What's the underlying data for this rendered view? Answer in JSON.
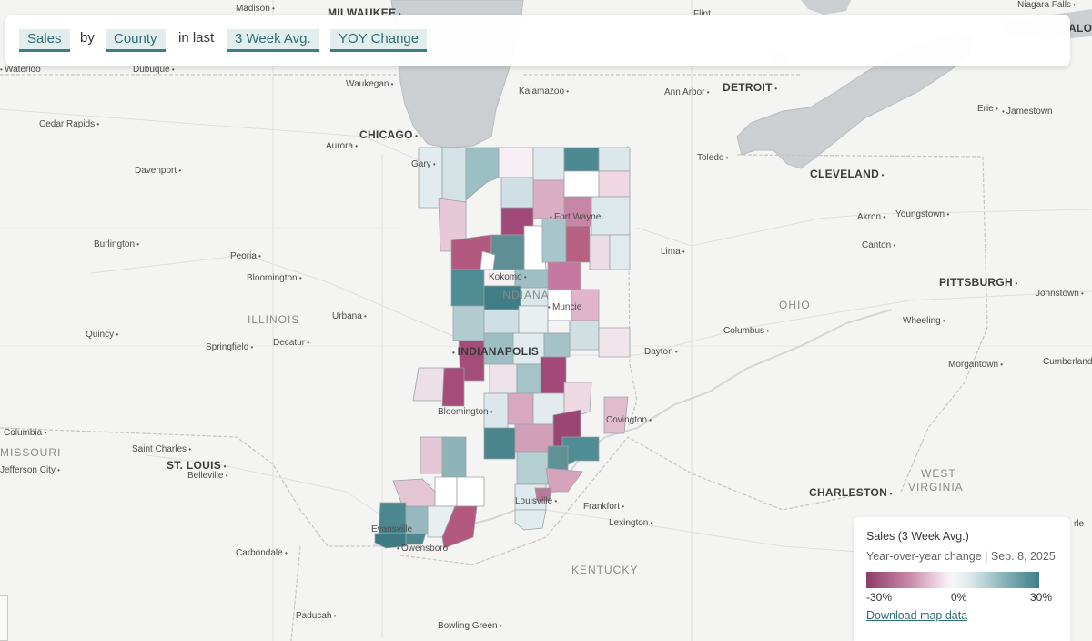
{
  "controls": {
    "metric": "Sales",
    "by_text": "by",
    "geography": "County",
    "in_last_text": "in last",
    "period": "3 Week Avg.",
    "comparison": "YOY Change"
  },
  "legend": {
    "title": "Sales (3 Week Avg.)",
    "subtitle": "Year-over-year change | Sep. 8, 2025",
    "min_label": "-30%",
    "mid_label": "0%",
    "max_label": "30%",
    "download_label": "Download map data",
    "colors": {
      "negative": "#8e3b67",
      "neutral": "#f7f7f7",
      "positive": "#3e7f87"
    }
  },
  "cities": {
    "madison": "Madison",
    "milwaukee": "MILWAUKEE",
    "flint": "Flint",
    "niagara_falls": "Niagara Falls",
    "buffalo_partial": "ALO",
    "waterloo": "Waterloo",
    "dubuque": "Dubuque",
    "waukegan": "Waukegan",
    "kalamazoo": "Kalamazoo",
    "ann_arbor": "Ann Arbor",
    "detroit": "DETROIT",
    "erie": "Erie",
    "jamestown": "Jamestown",
    "cedar_rapids": "Cedar Rapids",
    "chicago": "CHICAGO",
    "aurora": "Aurora",
    "gary": "Gary",
    "davenport": "Davenport",
    "toledo": "Toledo",
    "cleveland": "CLEVELAND",
    "fort_wayne": "Fort Wayne",
    "akron": "Akron",
    "youngstown": "Youngstown",
    "burlington": "Burlington",
    "peoria": "Peoria",
    "lima": "Lima",
    "canton": "Canton",
    "bloomington_il": "Bloomington",
    "kokomo": "Kokomo",
    "pittsburgh": "PITTSBURGH",
    "johnstown": "Johnstown",
    "muncie": "Muncie",
    "urbana": "Urbana",
    "quincy": "Quincy",
    "columbus_oh": "Columbus",
    "wheeling": "Wheeling",
    "springfield": "Springfield",
    "decatur": "Decatur",
    "indianapolis": "INDIANAPOLIS",
    "dayton": "Dayton",
    "morgantown": "Morgantown",
    "cumberland": "Cumberland",
    "bloomington_in": "Bloomington",
    "covington": "Covington",
    "columbia": "Columbia",
    "saint_charles": "Saint Charles",
    "st_louis": "ST. LOUIS",
    "jefferson_city": "Jefferson City",
    "belleville": "Belleville",
    "charleston": "CHARLESTON",
    "louisville": "Louisville",
    "frankfort": "Frankfort",
    "evansville": "Evansville",
    "lexington": "Lexington",
    "carbondale": "Carbondale",
    "owensboro": "Owensboro",
    "paducah": "Paducah",
    "bowling_green": "Bowling Green",
    "partial_right": "rle"
  },
  "regions": {
    "indiana": "INDIANA",
    "illinois": "ILLINOIS",
    "ohio": "OHIO",
    "missouri": "MISSOURI",
    "west_virginia_line1": "WEST",
    "west_virginia_line2": "VIRGINIA",
    "kentucky": "KENTUCKY"
  }
}
